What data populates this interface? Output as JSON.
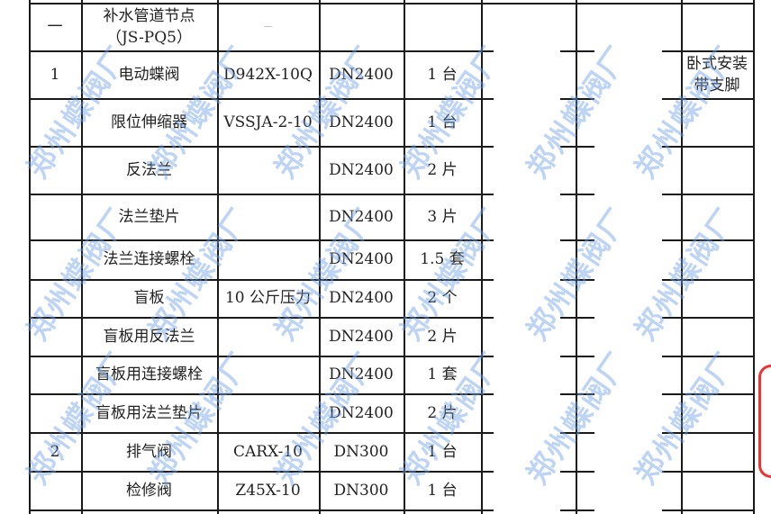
{
  "watermark": "郑州蝶阀厂",
  "rows": [
    {
      "no": "一",
      "name": "补水管道节点（JS-PQ5）",
      "model": "—",
      "spec": "",
      "qty": "",
      "note": ""
    },
    {
      "no": "1",
      "name": "电动蝶阀",
      "model": "D942X-10Q",
      "spec": "DN2400",
      "qty": "1 台",
      "note": "卧式安装带支脚"
    },
    {
      "no": "",
      "name": "限位伸缩器",
      "model": "VSSJA-2-10",
      "spec": "DN2400",
      "qty": "1 台",
      "note": ""
    },
    {
      "no": "",
      "name": "反法兰",
      "model": "",
      "spec": "DN2400",
      "qty": "2 片",
      "note": ""
    },
    {
      "no": "",
      "name": "法兰垫片",
      "model": "",
      "spec": "DN2400",
      "qty": "3 片",
      "note": ""
    },
    {
      "no": "",
      "name": "法兰连接螺栓",
      "model": "",
      "spec": "DN2400",
      "qty": "1.5 套",
      "note": ""
    },
    {
      "no": "",
      "name": "盲板",
      "model": "10 公斤压力",
      "spec": "DN2400",
      "qty": "2 个",
      "note": ""
    },
    {
      "no": "",
      "name": "盲板用反法兰",
      "model": "",
      "spec": "DN2400",
      "qty": "2 片",
      "note": ""
    },
    {
      "no": "",
      "name": "盲板用连接螺栓",
      "model": "",
      "spec": "DN2400",
      "qty": "1 套",
      "note": ""
    },
    {
      "no": "",
      "name": "盲板用法兰垫片",
      "model": "",
      "spec": "DN2400",
      "qty": "2 片",
      "note": ""
    },
    {
      "no": "2",
      "name": "排气阀",
      "model": "CARX-10",
      "spec": "DN300",
      "qty": "1 台",
      "note": ""
    },
    {
      "no": "",
      "name": "检修阀",
      "model": "Z45X-10",
      "spec": "DN300",
      "qty": "1 台",
      "note": ""
    }
  ]
}
